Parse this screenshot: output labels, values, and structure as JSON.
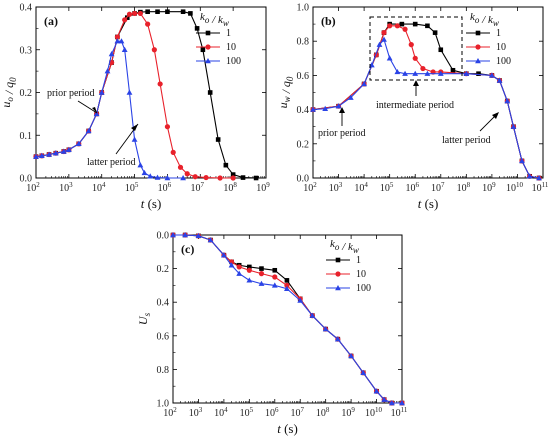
{
  "chart_data": [
    {
      "panel": "(a)",
      "type": "line",
      "xlabel": "t (s)",
      "ylabel": "u_o / q_0",
      "xscale": "log",
      "xlim": [
        100,
        1000000000
      ],
      "ylim": [
        0,
        0.4
      ],
      "yticks": [
        0.0,
        0.1,
        0.2,
        0.3,
        0.4
      ],
      "xtick_labels": [
        "10",
        "10",
        "10",
        "10",
        "10",
        "10",
        "10",
        "10"
      ],
      "xtick_exponents": [
        "2",
        "3",
        "4",
        "5",
        "6",
        "7",
        "8",
        "9"
      ],
      "legend": {
        "title": "k_o / k_w",
        "placement": "top-right"
      },
      "series": [
        {
          "name": "1",
          "color": "#000000",
          "marker": "square",
          "x": [
            100,
            150,
            250,
            400,
            700,
            1000,
            2000,
            4000,
            7000,
            10000,
            20000,
            30000,
            60000,
            100000,
            150000,
            250000,
            500000,
            1000000,
            3000000,
            5000000,
            8000000,
            12000000,
            20000000,
            35000000,
            60000000,
            100000000,
            200000000,
            500000000
          ],
          "y": [
            0.05,
            0.052,
            0.055,
            0.058,
            0.062,
            0.066,
            0.08,
            0.11,
            0.15,
            0.2,
            0.27,
            0.33,
            0.375,
            0.385,
            0.388,
            0.389,
            0.389,
            0.389,
            0.389,
            0.385,
            0.35,
            0.3,
            0.2,
            0.09,
            0.03,
            0.008,
            0.001,
            0.0
          ]
        },
        {
          "name": "10",
          "color": "#e8212b",
          "marker": "circle",
          "x": [
            100,
            150,
            250,
            400,
            700,
            1000,
            2000,
            4000,
            7000,
            10000,
            20000,
            30000,
            50000,
            70000,
            100000,
            150000,
            250000,
            400000,
            600000,
            1000000,
            1500000,
            2500000,
            4000000,
            7000000,
            15000000,
            40000000,
            100000000
          ],
          "y": [
            0.05,
            0.052,
            0.055,
            0.058,
            0.062,
            0.066,
            0.08,
            0.11,
            0.15,
            0.2,
            0.27,
            0.33,
            0.37,
            0.383,
            0.385,
            0.385,
            0.36,
            0.3,
            0.22,
            0.12,
            0.06,
            0.025,
            0.01,
            0.003,
            0.001,
            0.0,
            0.0
          ]
        },
        {
          "name": "100",
          "color": "#2a43e6",
          "marker": "triangle",
          "x": [
            100,
            150,
            250,
            400,
            700,
            1000,
            2000,
            4000,
            7000,
            10000,
            15000,
            20000,
            30000,
            40000,
            50000,
            70000,
            100000,
            150000,
            200000,
            300000,
            500000,
            1000000,
            3000000
          ],
          "y": [
            0.05,
            0.052,
            0.055,
            0.058,
            0.062,
            0.066,
            0.08,
            0.11,
            0.15,
            0.2,
            0.25,
            0.29,
            0.32,
            0.32,
            0.3,
            0.2,
            0.09,
            0.03,
            0.012,
            0.004,
            0.001,
            0.0,
            0.0
          ]
        }
      ],
      "annotations": [
        "prior period",
        "latter period"
      ]
    },
    {
      "panel": "(b)",
      "type": "line",
      "xlabel": "t (s)",
      "ylabel": "u_w / q_0",
      "xscale": "log",
      "xlim": [
        100,
        100000000000
      ],
      "ylim": [
        0,
        1.0
      ],
      "yticks": [
        0.0,
        0.2,
        0.4,
        0.6,
        0.8,
        1.0
      ],
      "xtick_labels": [
        "10",
        "10",
        "10",
        "10",
        "10",
        "10",
        "10",
        "10",
        "10",
        "10"
      ],
      "xtick_exponents": [
        "2",
        "3",
        "4",
        "5",
        "6",
        "7",
        "8",
        "9",
        "10",
        "11"
      ],
      "legend": {
        "title": "k_o / k_w",
        "placement": "top-right"
      },
      "series": [
        {
          "name": "1",
          "color": "#000000",
          "marker": "square",
          "x": [
            100,
            1000,
            10000,
            30000,
            60000,
            100000,
            300000,
            1000000,
            3000000,
            6000000,
            10000000,
            30000000,
            100000000,
            300000000,
            1000000000,
            2000000000,
            4000000000,
            7000000000,
            15000000000,
            30000000000,
            70000000000
          ],
          "y": [
            0.4,
            0.42,
            0.55,
            0.72,
            0.85,
            0.9,
            0.9,
            0.9,
            0.89,
            0.85,
            0.75,
            0.63,
            0.61,
            0.61,
            0.6,
            0.57,
            0.45,
            0.3,
            0.1,
            0.01,
            0.0
          ]
        },
        {
          "name": "10",
          "color": "#e8212b",
          "marker": "circle",
          "x": [
            100,
            1000,
            10000,
            30000,
            60000,
            100000,
            200000,
            400000,
            700000,
            1000000,
            2000000,
            5000000,
            10000000,
            100000000,
            1000000000,
            2000000000,
            4000000000,
            7000000000,
            15000000000,
            30000000000,
            70000000000
          ],
          "y": [
            0.4,
            0.42,
            0.55,
            0.72,
            0.85,
            0.89,
            0.89,
            0.87,
            0.78,
            0.7,
            0.64,
            0.62,
            0.62,
            0.61,
            0.6,
            0.57,
            0.45,
            0.3,
            0.1,
            0.01,
            0.0
          ]
        },
        {
          "name": "100",
          "color": "#2a43e6",
          "marker": "triangle",
          "x": [
            100,
            300,
            1000,
            3000,
            10000,
            20000,
            40000,
            60000,
            100000,
            200000,
            400000,
            1000000,
            3000000,
            10000000,
            100000000,
            1000000000,
            2000000000,
            4000000000,
            7000000000,
            15000000000,
            30000000000,
            70000000000
          ],
          "y": [
            0.4,
            0.405,
            0.42,
            0.47,
            0.55,
            0.66,
            0.78,
            0.81,
            0.7,
            0.62,
            0.61,
            0.61,
            0.61,
            0.61,
            0.61,
            0.6,
            0.57,
            0.45,
            0.3,
            0.1,
            0.01,
            0.0
          ]
        }
      ],
      "annotations": [
        "prior period",
        "intermediate period",
        "latter period"
      ]
    },
    {
      "panel": "(c)",
      "type": "line",
      "xlabel": "t (s)",
      "ylabel": "U_s",
      "xscale": "log",
      "xlim": [
        100,
        100000000000
      ],
      "ylim": [
        0,
        1.0
      ],
      "y_inverted": true,
      "yticks": [
        0.0,
        0.2,
        0.4,
        0.6,
        0.8,
        1.0
      ],
      "xtick_labels": [
        "10",
        "10",
        "10",
        "10",
        "10",
        "10",
        "10",
        "10",
        "10",
        "10"
      ],
      "xtick_exponents": [
        "2",
        "3",
        "4",
        "5",
        "6",
        "7",
        "8",
        "9",
        "10",
        "11"
      ],
      "legend": {
        "title": "k_o / k_w",
        "placement": "top-right"
      },
      "series": [
        {
          "name": "1",
          "color": "#000000",
          "marker": "square",
          "x": [
            100,
            300,
            1000,
            3000,
            10000,
            20000,
            40000,
            100000,
            300000,
            1000000,
            3000000,
            10000000,
            30000000,
            100000000,
            300000000,
            1000000000,
            3000000000,
            10000000000,
            20000000000,
            40000000000,
            100000000000
          ],
          "y": [
            0.0,
            0.0,
            0.005,
            0.03,
            0.12,
            0.16,
            0.18,
            0.19,
            0.2,
            0.21,
            0.27,
            0.38,
            0.48,
            0.56,
            0.62,
            0.72,
            0.82,
            0.93,
            0.98,
            1.0,
            1.0
          ]
        },
        {
          "name": "10",
          "color": "#e8212b",
          "marker": "circle",
          "x": [
            100,
            300,
            1000,
            3000,
            10000,
            20000,
            40000,
            100000,
            300000,
            1000000,
            3000000,
            10000000,
            30000000,
            100000000,
            300000000,
            1000000000,
            3000000000,
            10000000000,
            20000000000,
            40000000000,
            100000000000
          ],
          "y": [
            0.0,
            0.0,
            0.005,
            0.03,
            0.12,
            0.16,
            0.19,
            0.21,
            0.23,
            0.25,
            0.3,
            0.38,
            0.48,
            0.56,
            0.62,
            0.72,
            0.82,
            0.93,
            0.98,
            1.0,
            1.0
          ]
        },
        {
          "name": "100",
          "color": "#2a43e6",
          "marker": "triangle",
          "x": [
            100,
            300,
            1000,
            3000,
            10000,
            20000,
            40000,
            100000,
            300000,
            1000000,
            3000000,
            10000000,
            30000000,
            100000000,
            300000000,
            1000000000,
            3000000000,
            10000000000,
            20000000000,
            40000000000,
            100000000000
          ],
          "y": [
            0.0,
            0.0,
            0.005,
            0.03,
            0.12,
            0.18,
            0.23,
            0.27,
            0.29,
            0.3,
            0.32,
            0.39,
            0.48,
            0.56,
            0.62,
            0.72,
            0.82,
            0.93,
            0.98,
            1.0,
            1.0
          ]
        }
      ]
    }
  ]
}
